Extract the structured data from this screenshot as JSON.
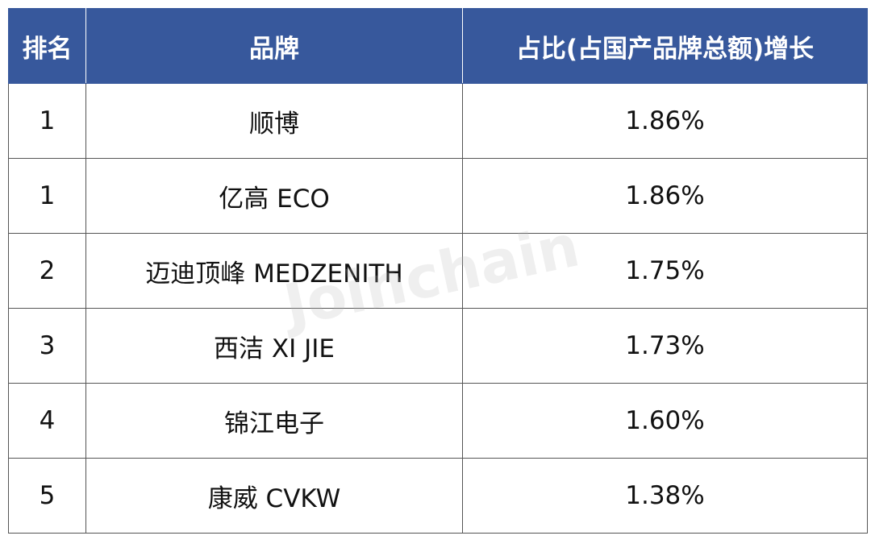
{
  "table": {
    "columns": [
      "排名",
      "品牌",
      "占比(占国产品牌总额)增长"
    ],
    "rows": [
      [
        "1",
        "顺博",
        "1.86%"
      ],
      [
        "1",
        "亿高 ECO",
        "1.86%"
      ],
      [
        "2",
        "迈迪顶峰 MEDZENITH",
        "1.75%"
      ],
      [
        "3",
        "西洁 XI JIE",
        "1.73%"
      ],
      [
        "4",
        "锦江电子",
        "1.60%"
      ],
      [
        "5",
        "康威 CVKW",
        "1.38%"
      ]
    ]
  },
  "watermark": "Joinchain"
}
